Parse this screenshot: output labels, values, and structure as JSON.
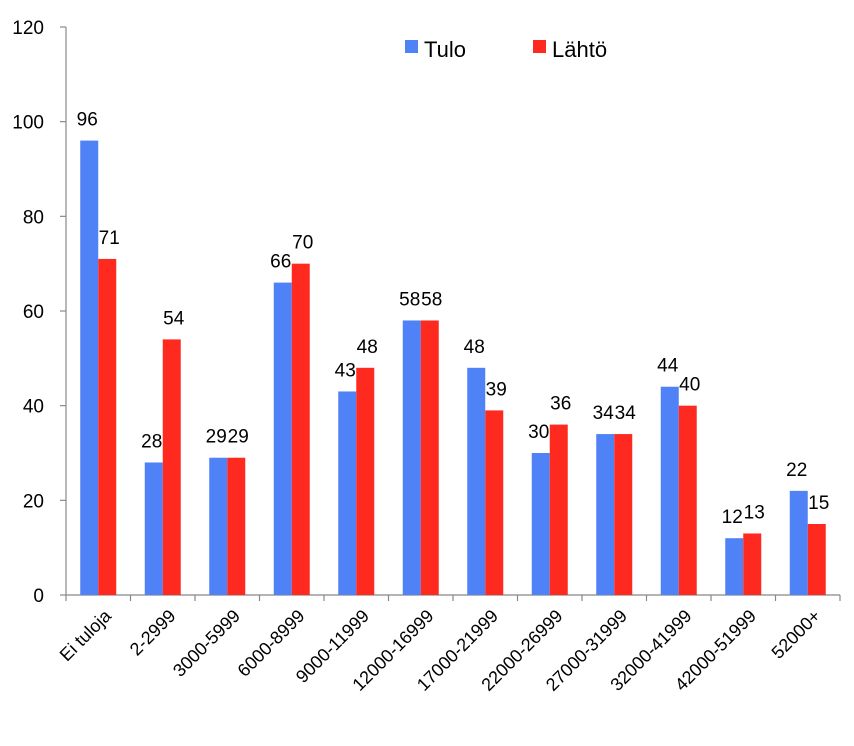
{
  "chart_data": {
    "type": "bar",
    "categories": [
      "Ei tuloja",
      "2-2999",
      "3000-5999",
      "6000-8999",
      "9000-11999",
      "12000-16999",
      "17000-21999",
      "22000-26999",
      "27000-31999",
      "32000-41999",
      "42000-51999",
      "52000+"
    ],
    "series": [
      {
        "name": "Tulo",
        "color": "#4f81f7",
        "values": [
          96,
          28,
          29,
          66,
          43,
          58,
          48,
          30,
          34,
          44,
          12,
          22
        ]
      },
      {
        "name": "Lähtö",
        "color": "#ff2a1f",
        "values": [
          71,
          54,
          29,
          70,
          48,
          58,
          39,
          36,
          34,
          40,
          13,
          15
        ]
      }
    ],
    "ylim": [
      0,
      120
    ],
    "yticks": [
      0,
      20,
      40,
      60,
      80,
      100,
      120
    ],
    "grid": false,
    "legend_position": "top-right",
    "xlabel": "",
    "ylabel": "",
    "title": ""
  }
}
